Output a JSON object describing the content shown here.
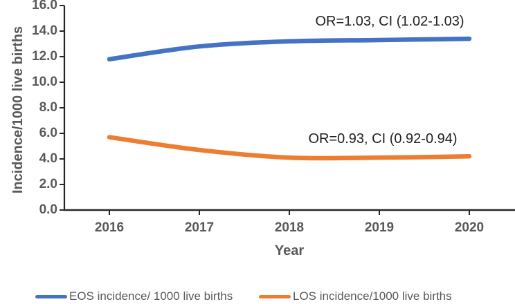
{
  "chart_data": {
    "type": "line",
    "title": "",
    "x": [
      2016,
      2017,
      2018,
      2019,
      2020
    ],
    "xlabel": "Year",
    "ylabel": "Incidence/1000 live births",
    "ylim": [
      0,
      16
    ],
    "ytick_interval": 2,
    "ytick_labels": [
      "16.0",
      "14.0",
      "12.0",
      "10.0",
      "8.0",
      "6.0",
      "4.0",
      "2.0",
      "0.0"
    ],
    "grid": false,
    "smoothed": true,
    "legend_position": "bottom",
    "series": [
      {
        "name": "EOS incidence/ 1000 live births",
        "color": "#4472C4",
        "values": [
          11.8,
          12.8,
          13.2,
          13.3,
          13.4
        ],
        "annotation": "OR=1.03, CI (1.02-1.03)"
      },
      {
        "name": "LOS incidence/1000 live births",
        "color": "#ED7D31",
        "values": [
          5.7,
          4.7,
          4.1,
          4.1,
          4.2
        ],
        "annotation": "OR=0.93, CI (0.92-0.94)"
      }
    ]
  },
  "colors": {
    "axis": "#262626",
    "tick_text": "#595959",
    "annotation_text": "#1f1f1f",
    "background": "#ffffff"
  }
}
